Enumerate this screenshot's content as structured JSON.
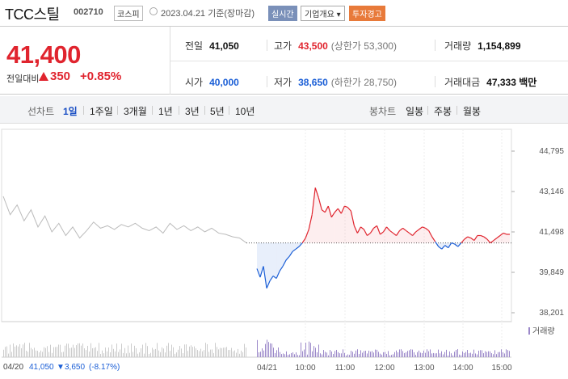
{
  "header": {
    "title": "TCC스틸",
    "code": "002710",
    "market": "코스피",
    "date": "2023.04.21 기준(장마감)",
    "realtime_label": "실시간",
    "overview_label": "기업개요",
    "warning_label": "투자경고"
  },
  "quote": {
    "price": "41,400",
    "change_label": "전일대비",
    "change_value": "350",
    "change_pct": "+0.85%",
    "direction": "up",
    "up_color": "#e0242e",
    "down_color": "#1a5ed6"
  },
  "stats": {
    "prev_close": {
      "label": "전일",
      "value": "41,050"
    },
    "high": {
      "label": "고가",
      "value": "43,500",
      "sub": "(상한가 53,300)"
    },
    "volume": {
      "label": "거래량",
      "value": "1,154,899"
    },
    "open": {
      "label": "시가",
      "value": "40,000"
    },
    "low": {
      "label": "저가",
      "value": "38,650",
      "sub": "(하한가 28,750)"
    },
    "trade_amount": {
      "label": "거래대금",
      "value": "47,333 백만"
    }
  },
  "tabs": {
    "line_chart_label": "선차트",
    "periods": [
      "1일",
      "1주일",
      "3개월",
      "1년",
      "3년",
      "5년",
      "10년"
    ],
    "active_period": "1일",
    "candle_chart_label": "봉차트",
    "candles": [
      "일봉",
      "주봉",
      "월봉"
    ]
  },
  "chart_data": {
    "type": "line",
    "y_ticks": [
      "44,795",
      "43,146",
      "41,498",
      "39,849",
      "38,201"
    ],
    "ylim": [
      38201,
      44795
    ],
    "baseline": 41050,
    "x_ticks": [
      "04/20",
      "04/21",
      "10:00",
      "11:00",
      "12:00",
      "13:00",
      "14:00",
      "15:00"
    ],
    "legend": "거래량",
    "previous_day_series": [
      42950,
      42200,
      42600,
      41950,
      42400,
      41700,
      42150,
      41500,
      41850,
      41350,
      41700,
      41250,
      41550,
      41900,
      41650,
      41750,
      41600,
      41800,
      41700,
      41850,
      41650,
      41550,
      41700,
      41450,
      41850,
      41600,
      41750,
      41550,
      41700,
      41500,
      41650,
      41450,
      41400,
      41300,
      41250,
      41050
    ],
    "today_series": [
      40000,
      39650,
      40100,
      39200,
      39500,
      39700,
      39600,
      39900,
      40100,
      40350,
      40500,
      40700,
      40800,
      40900,
      41050,
      41250,
      41600,
      42200,
      43300,
      42900,
      42400,
      42300,
      42550,
      42100,
      42300,
      42450,
      42250,
      42550,
      42500,
      42350,
      41750,
      41450,
      41700,
      41600,
      41350,
      41450,
      41650,
      41750,
      41400,
      41500,
      41700,
      41550,
      41450,
      41350,
      41550,
      41650,
      41550,
      41450,
      41350,
      41500,
      41600,
      41700,
      41650,
      41550,
      41300,
      41100,
      40900,
      40800,
      40950,
      40850,
      41050,
      41000,
      40900,
      41050,
      41200,
      41300,
      41250,
      41150,
      41350,
      41350,
      41300,
      41200,
      41050,
      41150,
      41250,
      41350,
      41450,
      41400,
      41400
    ]
  },
  "footer": {
    "prev_date_price": "41,050",
    "prev_change": "3,650",
    "prev_change_pct": "(-8.17%)"
  }
}
